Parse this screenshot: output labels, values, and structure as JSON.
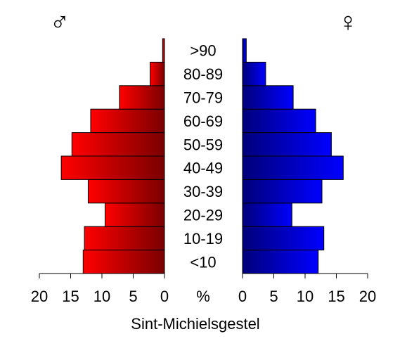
{
  "chart_data": {
    "type": "bar",
    "orientation": "horizontal",
    "layout": "population-pyramid",
    "categories": [
      "<10",
      "10-19",
      "20-29",
      "30-39",
      "40-49",
      "50-59",
      "60-69",
      "70-79",
      "80-89",
      ">90"
    ],
    "series": [
      {
        "name": "♂",
        "values": [
          13.0,
          12.8,
          9.5,
          12.2,
          16.5,
          14.8,
          11.8,
          7.2,
          2.3,
          0.3
        ]
      },
      {
        "name": "♀",
        "values": [
          12.1,
          13.0,
          7.9,
          12.7,
          16.1,
          14.2,
          11.7,
          8.1,
          3.7,
          0.6
        ]
      }
    ],
    "xlim": [
      0,
      20
    ],
    "xticks": [
      0,
      5,
      10,
      15,
      20
    ],
    "xunit": "%",
    "xlabel": "Sint-Michielsgestel",
    "grid": false,
    "colors": {
      "male_light": "#ff0000",
      "male_dark": "#7a0000",
      "female_light": "#0000ff",
      "female_dark": "#00007a"
    }
  }
}
